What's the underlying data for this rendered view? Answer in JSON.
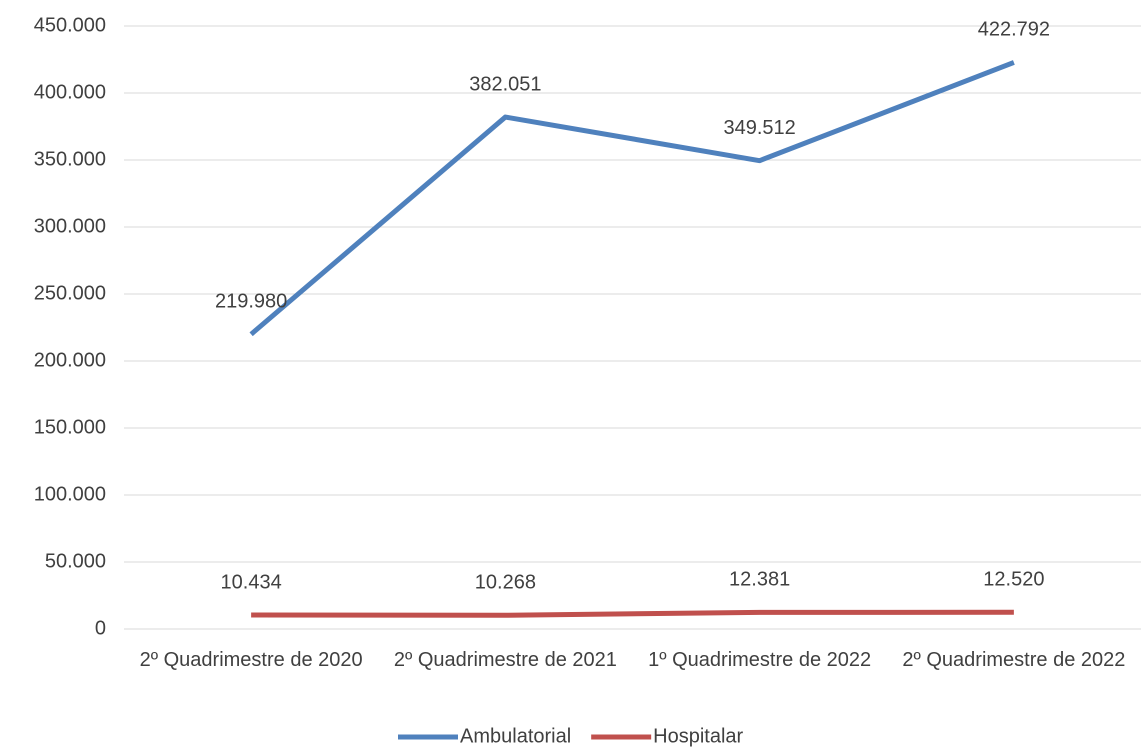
{
  "chart_data": {
    "type": "line",
    "categories": [
      "2º Quadrimestre de 2020",
      "2º Quadrimestre de 2021",
      "1º Quadrimestre de 2022",
      "2º Quadrimestre de 2022"
    ],
    "series": [
      {
        "name": "Ambulatorial",
        "color": "#4f81bd",
        "values": [
          219980,
          382051,
          349512,
          422792
        ],
        "value_labels": [
          "219.980",
          "382.051",
          "349.512",
          "422.792"
        ]
      },
      {
        "name": "Hospitalar",
        "color": "#c0504d",
        "values": [
          10434,
          10268,
          12381,
          12520
        ],
        "value_labels": [
          "10.434",
          "10.268",
          "12.381",
          "12.520"
        ]
      }
    ],
    "ylim": [
      0,
      450000
    ],
    "yticks": [
      0,
      {
        "value": 50000,
        "label": "50.000"
      },
      {
        "value": 100000,
        "label": "100.000"
      },
      {
        "value": 150000,
        "label": "150.000"
      },
      {
        "value": 200000,
        "label": "200.000"
      },
      {
        "value": 250000,
        "label": "250.000"
      },
      {
        "value": 300000,
        "label": "300.000"
      },
      {
        "value": 350000,
        "label": "350.000"
      },
      {
        "value": 400000,
        "label": "400.000"
      },
      {
        "value": 450000,
        "label": "450.000"
      }
    ],
    "grid": true,
    "legend": "bottom"
  }
}
